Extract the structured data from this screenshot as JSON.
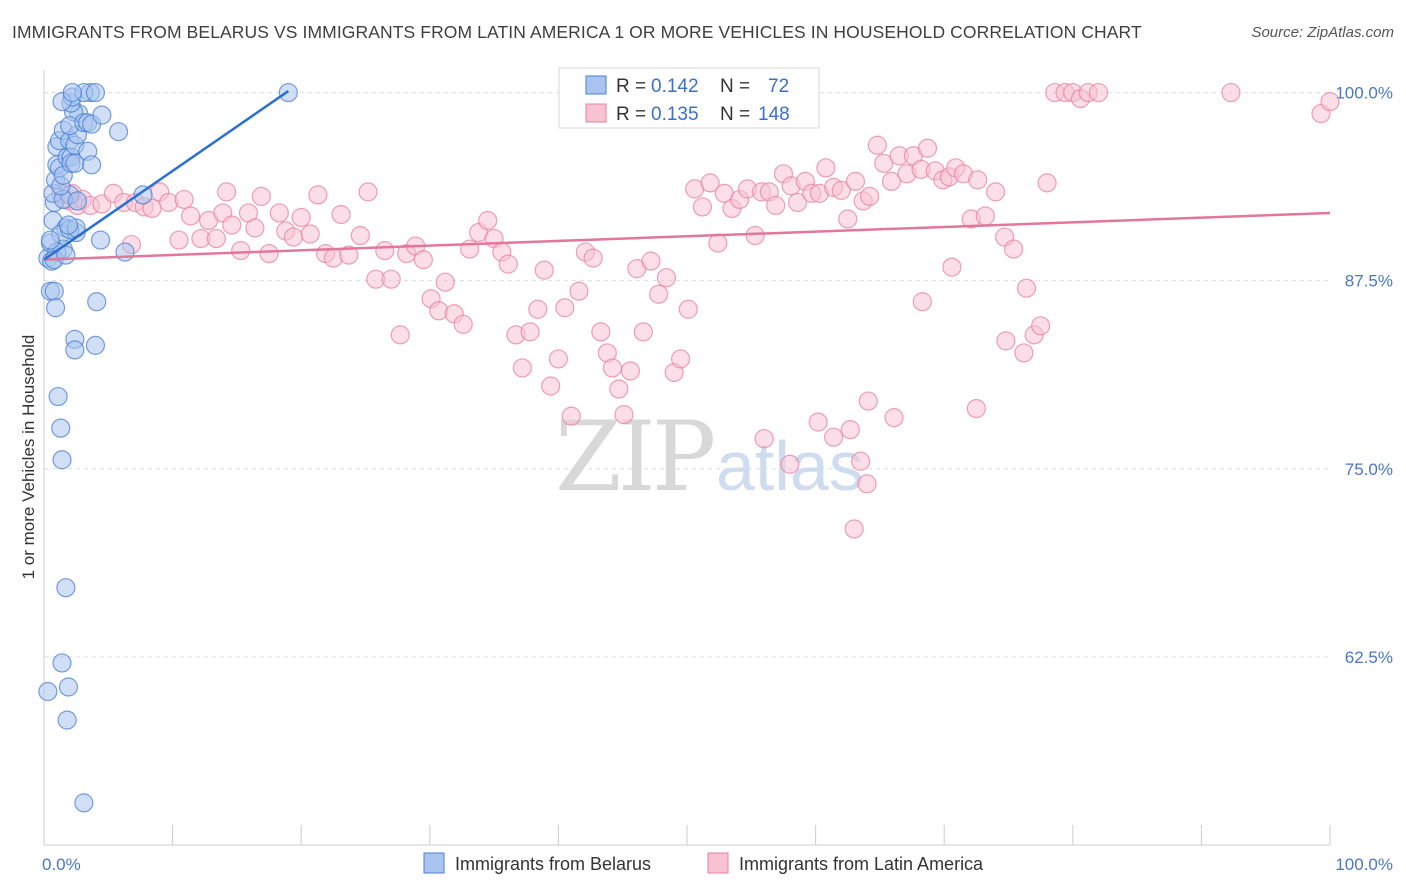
{
  "header": {
    "title": "IMMIGRANTS FROM BELARUS VS IMMIGRANTS FROM LATIN AMERICA 1 OR MORE VEHICLES IN HOUSEHOLD CORRELATION CHART",
    "source": "Source: ZipAtlas.com"
  },
  "watermark": {
    "zip": "ZIP",
    "atlas": "atlas"
  },
  "legend": {
    "series1": {
      "r_label": "R = ",
      "r_value": "0.142",
      "n_label": "N = ",
      "n_value": "72"
    },
    "series2": {
      "r_label": "R = ",
      "r_value": "0.135",
      "n_label": "N = ",
      "n_value": "148"
    }
  },
  "colors": {
    "belarus_fill": "#a9c4ee",
    "belarus_stroke": "#4a7fd4",
    "belarus_line": "#2a6fd2",
    "latin_fill": "#f7c3d3",
    "latin_stroke": "#e8809f",
    "latin_line": "#e2779b",
    "grid": "#dddddd",
    "tick_text": "#4a76c9"
  },
  "chart_data": {
    "type": "scatter",
    "title": "IMMIGRANTS FROM BELARUS VS IMMIGRANTS FROM LATIN AMERICA 1 OR MORE VEHICLES IN HOUSEHOLD CORRELATION CHART",
    "xlabel": "",
    "ylabel": "1 or more Vehicles in Household",
    "xlim": [
      0,
      100
    ],
    "ylim": [
      50,
      101.5
    ],
    "x_tick_labels": [
      {
        "value": 0,
        "label": "0.0%"
      },
      {
        "value": 100,
        "label": "100.0%"
      }
    ],
    "y_tick_labels": [
      {
        "value": 62.5,
        "label": "62.5%"
      },
      {
        "value": 75.0,
        "label": "75.0%"
      },
      {
        "value": 87.5,
        "label": "87.5%"
      },
      {
        "value": 100.0,
        "label": "100.0%"
      }
    ],
    "grid": true,
    "legend_position": "top-center",
    "series": [
      {
        "name": "Immigrants from Belarus",
        "R": 0.142,
        "N": 72,
        "trend": {
          "x": [
            0,
            19
          ],
          "y": [
            88.9,
            100.1
          ]
        },
        "points": [
          [
            0.3,
            60.2
          ],
          [
            0.5,
            86.8
          ],
          [
            0.3,
            89.0
          ],
          [
            0.5,
            90.0
          ],
          [
            0.7,
            91.5
          ],
          [
            0.8,
            92.7
          ],
          [
            0.7,
            93.3
          ],
          [
            0.9,
            94.2
          ],
          [
            1.0,
            95.2
          ],
          [
            1.2,
            95.0
          ],
          [
            1.0,
            96.4
          ],
          [
            1.2,
            96.8
          ],
          [
            1.5,
            97.5
          ],
          [
            1.8,
            95.7
          ],
          [
            2.0,
            96.8
          ],
          [
            2.1,
            95.7
          ],
          [
            2.0,
            93.2
          ],
          [
            1.5,
            92.9
          ],
          [
            1.7,
            91.0
          ],
          [
            1.3,
            90.6
          ],
          [
            1.5,
            89.6
          ],
          [
            1.0,
            89.4
          ],
          [
            0.6,
            88.8
          ],
          [
            0.8,
            86.8
          ],
          [
            0.9,
            85.7
          ],
          [
            0.5,
            90.2
          ],
          [
            0.8,
            88.9
          ],
          [
            1.1,
            79.8
          ],
          [
            1.3,
            77.7
          ],
          [
            1.4,
            75.6
          ],
          [
            1.7,
            67.1
          ],
          [
            1.4,
            62.1
          ],
          [
            1.9,
            60.5
          ],
          [
            1.8,
            58.3
          ],
          [
            3.1,
            52.8
          ],
          [
            2.4,
            83.6
          ],
          [
            2.4,
            82.9
          ],
          [
            4.0,
            83.2
          ],
          [
            4.1,
            86.1
          ],
          [
            2.5,
            90.7
          ],
          [
            2.0,
            90.9
          ],
          [
            1.7,
            89.2
          ],
          [
            2.5,
            91.0
          ],
          [
            1.3,
            93.8
          ],
          [
            1.5,
            94.5
          ],
          [
            2.1,
            95.3
          ],
          [
            2.4,
            95.3
          ],
          [
            2.4,
            96.5
          ],
          [
            2.6,
            97.2
          ],
          [
            2.7,
            98.6
          ],
          [
            2.3,
            98.7
          ],
          [
            2.1,
            99.3
          ],
          [
            2.2,
            99.7
          ],
          [
            1.4,
            99.4
          ],
          [
            2.0,
            97.8
          ],
          [
            3.1,
            98.0
          ],
          [
            3.4,
            98.0
          ],
          [
            3.7,
            97.9
          ],
          [
            4.5,
            98.5
          ],
          [
            5.8,
            97.4
          ],
          [
            3.6,
            100.0
          ],
          [
            3.1,
            100.0
          ],
          [
            4.0,
            100.0
          ],
          [
            2.2,
            100.0
          ],
          [
            19.0,
            100.0
          ],
          [
            3.4,
            96.1
          ],
          [
            3.7,
            95.2
          ],
          [
            4.4,
            90.2
          ],
          [
            6.3,
            89.4
          ],
          [
            7.7,
            93.2
          ],
          [
            1.9,
            91.2
          ],
          [
            2.6,
            92.8
          ]
        ]
      },
      {
        "name": "Immigrants from Latin America",
        "R": 0.135,
        "N": 148,
        "trend": {
          "x": [
            0,
            100
          ],
          "y": [
            88.9,
            92.0
          ]
        },
        "points": [
          [
            1.3,
            93.3
          ],
          [
            1.7,
            92.9
          ],
          [
            2.0,
            92.8
          ],
          [
            2.2,
            93.3
          ],
          [
            2.6,
            92.5
          ],
          [
            3.0,
            92.9
          ],
          [
            3.6,
            92.5
          ],
          [
            4.5,
            92.6
          ],
          [
            5.4,
            93.3
          ],
          [
            6.2,
            92.7
          ],
          [
            6.8,
            89.9
          ],
          [
            7.1,
            92.7
          ],
          [
            7.8,
            92.4
          ],
          [
            8.4,
            92.3
          ],
          [
            9.0,
            93.4
          ],
          [
            9.7,
            92.7
          ],
          [
            10.5,
            90.2
          ],
          [
            10.9,
            92.9
          ],
          [
            11.4,
            91.8
          ],
          [
            12.2,
            90.3
          ],
          [
            12.8,
            91.5
          ],
          [
            13.4,
            90.3
          ],
          [
            13.9,
            92.0
          ],
          [
            14.2,
            93.4
          ],
          [
            14.6,
            91.2
          ],
          [
            15.3,
            89.5
          ],
          [
            15.9,
            92.0
          ],
          [
            16.4,
            91.0
          ],
          [
            16.9,
            93.1
          ],
          [
            17.5,
            89.3
          ],
          [
            18.3,
            92.0
          ],
          [
            18.8,
            90.8
          ],
          [
            19.4,
            90.4
          ],
          [
            20.0,
            91.7
          ],
          [
            20.7,
            90.6
          ],
          [
            21.3,
            93.2
          ],
          [
            21.9,
            89.3
          ],
          [
            22.5,
            89.0
          ],
          [
            23.1,
            91.9
          ],
          [
            23.7,
            89.2
          ],
          [
            24.6,
            90.5
          ],
          [
            25.2,
            93.4
          ],
          [
            25.8,
            87.6
          ],
          [
            26.5,
            89.5
          ],
          [
            27.0,
            87.6
          ],
          [
            27.7,
            83.9
          ],
          [
            28.2,
            89.3
          ],
          [
            28.9,
            89.8
          ],
          [
            29.5,
            88.9
          ],
          [
            30.1,
            86.3
          ],
          [
            30.7,
            85.5
          ],
          [
            31.2,
            87.4
          ],
          [
            31.9,
            85.3
          ],
          [
            32.6,
            84.6
          ],
          [
            33.1,
            89.6
          ],
          [
            33.8,
            90.7
          ],
          [
            34.5,
            91.5
          ],
          [
            35.0,
            90.3
          ],
          [
            35.6,
            89.4
          ],
          [
            36.1,
            88.6
          ],
          [
            36.7,
            83.9
          ],
          [
            37.2,
            81.7
          ],
          [
            37.8,
            84.1
          ],
          [
            38.4,
            85.6
          ],
          [
            38.9,
            88.2
          ],
          [
            39.4,
            80.5
          ],
          [
            40.0,
            82.3
          ],
          [
            40.5,
            85.7
          ],
          [
            41.0,
            78.5
          ],
          [
            41.6,
            86.8
          ],
          [
            42.1,
            89.4
          ],
          [
            42.7,
            89.0
          ],
          [
            43.3,
            84.1
          ],
          [
            43.8,
            82.7
          ],
          [
            44.2,
            81.7
          ],
          [
            44.7,
            80.3
          ],
          [
            45.1,
            78.6
          ],
          [
            45.6,
            81.5
          ],
          [
            46.1,
            88.3
          ],
          [
            46.6,
            84.1
          ],
          [
            47.2,
            88.8
          ],
          [
            47.8,
            86.6
          ],
          [
            48.4,
            87.7
          ],
          [
            49.0,
            81.4
          ],
          [
            49.5,
            82.3
          ],
          [
            50.1,
            85.6
          ],
          [
            50.6,
            93.6
          ],
          [
            51.2,
            92.4
          ],
          [
            51.8,
            94.0
          ],
          [
            52.4,
            90.0
          ],
          [
            52.9,
            93.3
          ],
          [
            53.5,
            92.3
          ],
          [
            54.1,
            92.9
          ],
          [
            54.7,
            93.6
          ],
          [
            55.3,
            90.5
          ],
          [
            55.8,
            93.4
          ],
          [
            56.4,
            93.4
          ],
          [
            56.9,
            92.5
          ],
          [
            57.5,
            94.6
          ],
          [
            58.1,
            93.8
          ],
          [
            58.6,
            92.7
          ],
          [
            59.2,
            94.1
          ],
          [
            59.7,
            93.3
          ],
          [
            60.3,
            93.3
          ],
          [
            60.8,
            95.0
          ],
          [
            61.4,
            93.7
          ],
          [
            62.0,
            93.5
          ],
          [
            62.5,
            91.6
          ],
          [
            63.1,
            94.1
          ],
          [
            63.7,
            92.8
          ],
          [
            64.2,
            93.1
          ],
          [
            64.8,
            96.5
          ],
          [
            65.3,
            95.3
          ],
          [
            65.9,
            94.1
          ],
          [
            66.5,
            95.8
          ],
          [
            67.1,
            94.6
          ],
          [
            67.6,
            95.8
          ],
          [
            68.2,
            94.9
          ],
          [
            68.7,
            96.3
          ],
          [
            69.3,
            94.8
          ],
          [
            69.9,
            94.2
          ],
          [
            70.4,
            94.4
          ],
          [
            70.9,
            95.0
          ],
          [
            71.5,
            94.6
          ],
          [
            72.1,
            91.6
          ],
          [
            72.6,
            94.2
          ],
          [
            73.2,
            91.8
          ],
          [
            74.0,
            93.4
          ],
          [
            74.7,
            90.4
          ],
          [
            75.4,
            89.6
          ],
          [
            76.4,
            87.0
          ],
          [
            77.0,
            83.9
          ],
          [
            77.5,
            84.5
          ],
          [
            78.0,
            94.0
          ],
          [
            78.6,
            100.0
          ],
          [
            79.4,
            100.0
          ],
          [
            80.0,
            100.0
          ],
          [
            80.6,
            99.6
          ],
          [
            81.2,
            100.0
          ],
          [
            82.0,
            100.0
          ],
          [
            63.0,
            71.0
          ],
          [
            63.5,
            75.5
          ],
          [
            64.0,
            74.0
          ],
          [
            56.0,
            77.0
          ],
          [
            58.0,
            75.3
          ],
          [
            60.2,
            78.1
          ],
          [
            61.4,
            77.1
          ],
          [
            62.7,
            77.6
          ],
          [
            64.1,
            79.5
          ],
          [
            66.1,
            78.4
          ],
          [
            68.3,
            86.1
          ],
          [
            70.6,
            88.4
          ],
          [
            72.5,
            79.0
          ],
          [
            74.8,
            83.5
          ],
          [
            76.2,
            82.7
          ],
          [
            99.3,
            98.6
          ],
          [
            92.3,
            100.0
          ],
          [
            100.0,
            99.4
          ]
        ]
      }
    ]
  },
  "bottom_legend": {
    "items": [
      {
        "label": "Immigrants from Belarus"
      },
      {
        "label": "Immigrants from Latin America"
      }
    ]
  }
}
